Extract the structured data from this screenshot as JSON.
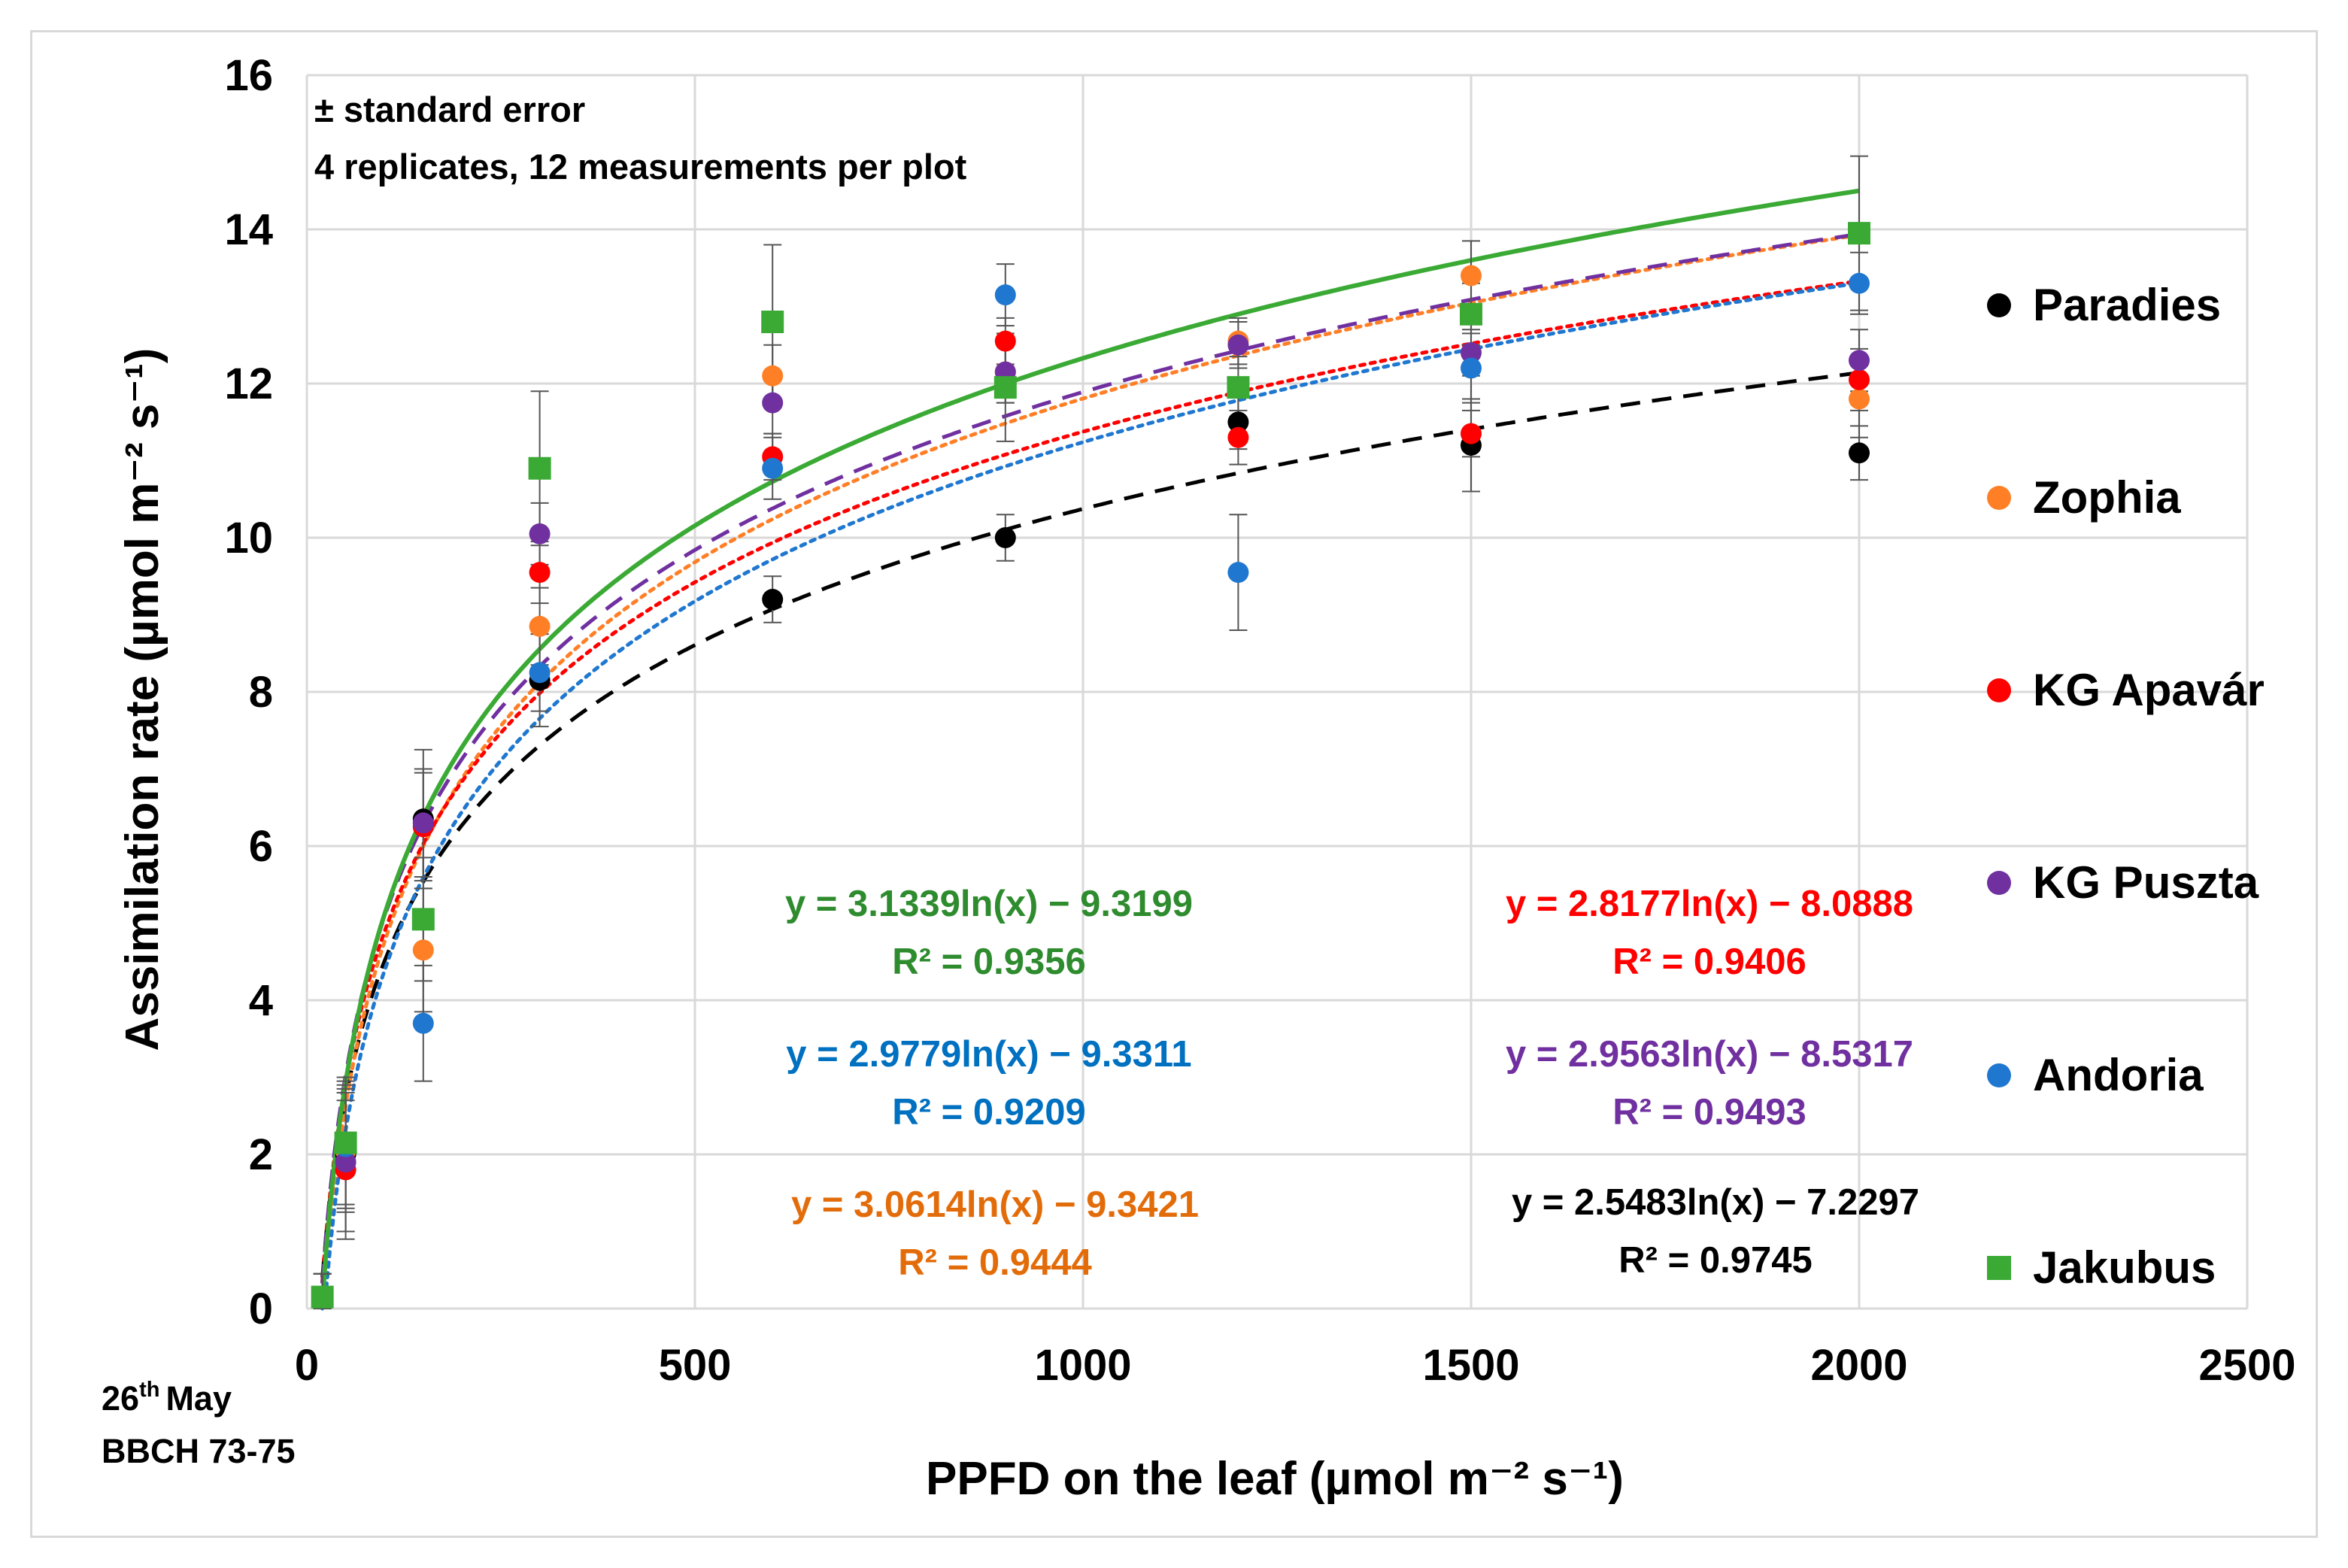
{
  "chart_data": {
    "type": "scatter",
    "xlabel": "PPFD on the leaf (µmol m⁻² s⁻¹)",
    "ylabel": "Assimilation rate (µmol m⁻² s⁻¹)",
    "xlim": [
      0,
      2500
    ],
    "ylim": [
      0,
      16
    ],
    "x_ticks": [
      0,
      500,
      1000,
      1500,
      2000,
      2500
    ],
    "y_ticks": [
      0,
      2,
      4,
      6,
      8,
      10,
      12,
      14,
      16
    ],
    "grid": true,
    "legend_position": "right",
    "notes": [
      "± standard error",
      "4 replicates, 12 measurements per plot"
    ],
    "date_label": {
      "day": "26",
      "suffix": "th",
      "month": "May",
      "stage": "BBCH 73-75"
    },
    "x": [
      20,
      50,
      150,
      300,
      600,
      900,
      1200,
      1500,
      2000
    ],
    "series": [
      {
        "name": "Paradies",
        "color": "#000000",
        "marker": "circle",
        "line_style": "dashed",
        "values": [
          0.15,
          2.0,
          6.35,
          8.15,
          9.2,
          10.0,
          11.5,
          11.2,
          11.1
        ],
        "errors": [
          0.3,
          1.0,
          0.9,
          0.6,
          0.3,
          0.3,
          0.35,
          0.6,
          0.35
        ],
        "fit": {
          "a": 2.5483,
          "b": -7.2297,
          "equation": "y = 2.5483ln(x) − 7.2297",
          "r2": "R² = 0.9745"
        }
      },
      {
        "name": "Zophia",
        "color": "#ff7f27",
        "marker": "circle",
        "line_style": "dotted",
        "values": [
          0.15,
          2.05,
          4.65,
          8.85,
          12.1,
          12.15,
          12.55,
          13.4,
          11.8
        ],
        "errors": [
          0.3,
          0.8,
          0.8,
          0.5,
          0.4,
          0.4,
          0.3,
          0.45,
          0.5
        ],
        "fit": {
          "a": 3.0614,
          "b": -9.3421,
          "equation": "y = 3.0614ln(x) − 9.3421",
          "r2": "R² = 0.9444"
        }
      },
      {
        "name": "KG Apavár",
        "color": "#ff0000",
        "marker": "circle",
        "line_style": "dotted",
        "values": [
          0.15,
          1.8,
          6.25,
          9.55,
          11.05,
          12.55,
          11.3,
          11.35,
          12.05
        ],
        "errors": [
          0.3,
          0.9,
          0.7,
          0.4,
          0.3,
          0.3,
          0.35,
          0.3,
          0.4
        ],
        "fit": {
          "a": 2.8177,
          "b": -8.0888,
          "equation": "y = 2.8177ln(x) − 8.0888",
          "r2": "R² = 0.9406"
        }
      },
      {
        "name": "KG Puszta",
        "color": "#7030a0",
        "marker": "circle",
        "line_style": "dashed",
        "values": [
          0.15,
          1.9,
          6.3,
          10.05,
          11.75,
          12.15,
          12.5,
          12.4,
          12.3
        ],
        "errors": [
          0.3,
          0.9,
          0.7,
          0.4,
          0.4,
          0.4,
          0.3,
          0.3,
          0.4
        ],
        "fit": {
          "a": 2.9563,
          "b": -8.5317,
          "equation": "y = 2.9563ln(x) − 8.5317",
          "r2": "R² = 0.9493"
        }
      },
      {
        "name": "Andoria",
        "color": "#1f77d0",
        "marker": "circle",
        "line_style": "dotted",
        "values": [
          0.15,
          2.1,
          3.7,
          8.25,
          10.9,
          13.15,
          9.55,
          12.2,
          13.3
        ],
        "errors": [
          0.3,
          0.8,
          0.75,
          0.5,
          0.4,
          0.4,
          0.75,
          0.45,
          0.4
        ],
        "fit": {
          "a": 2.9779,
          "b": -9.3311,
          "equation": "y = 2.9779ln(x) − 9.3311",
          "r2": "R² = 0.9209"
        }
      },
      {
        "name": "Jakubus",
        "color": "#3aaa35",
        "marker": "square",
        "line_style": "solid",
        "values": [
          0.15,
          2.15,
          5.05,
          10.9,
          12.8,
          11.95,
          11.95,
          12.9,
          13.95
        ],
        "errors": [
          0.3,
          0.8,
          0.8,
          1.0,
          1.0,
          0.7,
          0.4,
          0.4,
          1.0
        ],
        "fit": {
          "a": 3.1339,
          "b": -9.3199,
          "equation": "y = 3.1339ln(x) − 9.3199",
          "r2": "R² = 0.9356"
        }
      }
    ]
  },
  "equation_colors": {
    "Paradies": "#000000",
    "Zophia": "#e36c0a",
    "KG Apavár": "#ff0000",
    "KG Puszta": "#7030a0",
    "Andoria": "#0070c0",
    "Jakubus": "#2e8b2e"
  }
}
